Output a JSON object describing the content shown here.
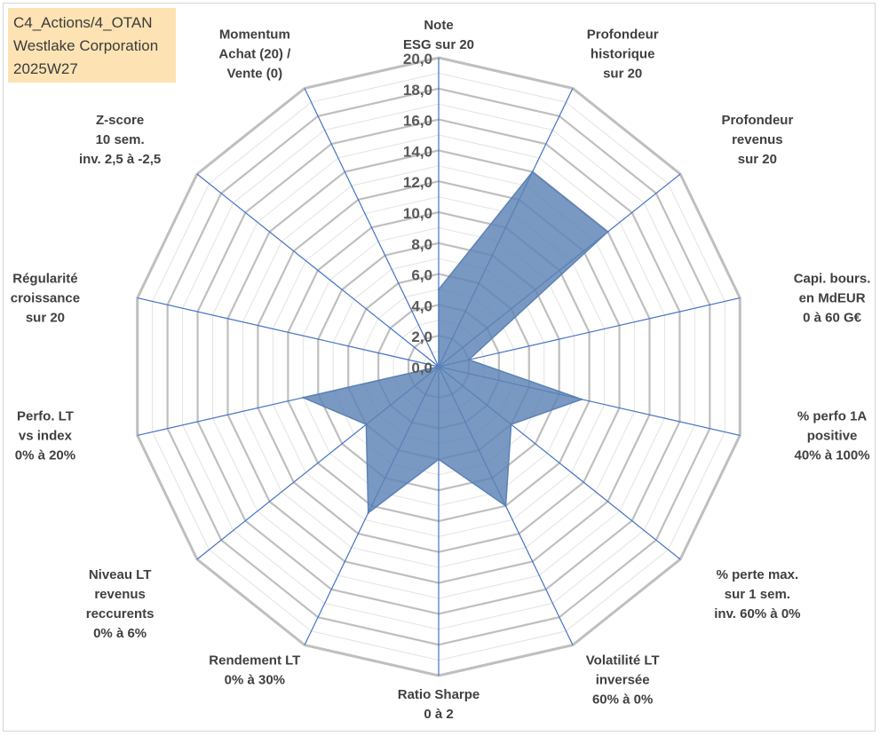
{
  "info": {
    "line1": "C4_Actions/4_OTAN",
    "line2": "Westlake Corporation",
    "line3": "2025W27"
  },
  "chart_data": {
    "type": "radar",
    "title": "",
    "max": 20,
    "ticks": [
      "0,0",
      "2,0",
      "4,0",
      "6,0",
      "8,0",
      "10,0",
      "12,0",
      "14,0",
      "16,0",
      "18,0",
      "20,0"
    ],
    "axes": [
      {
        "label": [
          "Note",
          "ESG sur 20"
        ],
        "value": 5.0
      },
      {
        "label": [
          "Profondeur",
          "historique",
          "sur 20"
        ],
        "value": 14.0
      },
      {
        "label": [
          "Profondeur",
          "revenus",
          "sur 20"
        ],
        "value": 14.0
      },
      {
        "label": [
          "Capi. bours.",
          "en MdEUR",
          "0 à 60 G€"
        ],
        "value": 2.0
      },
      {
        "label": [
          "% perfo 1A",
          "positive",
          "40% à 100%"
        ],
        "value": 9.5
      },
      {
        "label": [
          "% perte max.",
          "sur 1 sem.",
          "inv. 60% à 0%"
        ],
        "value": 6.0
      },
      {
        "label": [
          "Volatilité LT",
          "inversée",
          "60% à 0%"
        ],
        "value": 10.0
      },
      {
        "label": [
          "Ratio Sharpe",
          "0 à 2"
        ],
        "value": 6.0
      },
      {
        "label": [
          "Rendement LT",
          "0% à 30%"
        ],
        "value": 10.5
      },
      {
        "label": [
          "Niveau LT",
          "revenus",
          "reccurents",
          "0% à 6%"
        ],
        "value": 6.0
      },
      {
        "label": [
          "Perfo. LT",
          "vs index",
          "0% à 20%"
        ],
        "value": 9.0
      },
      {
        "label": [
          "Régularité",
          "croissance",
          "sur 20"
        ],
        "value": 0.0
      },
      {
        "label": [
          "Z-score",
          "10 sem.",
          "inv. 2,5 à -2,5"
        ],
        "value": 0.0
      },
      {
        "label": [
          "Momentum",
          "Achat (20) /",
          "Vente (0)"
        ],
        "value": 0.0
      }
    ],
    "colors": {
      "fill": "#5b82b5",
      "fill_opacity": 0.82,
      "grid_major": "#bfbfbf",
      "grid_minor": "#e3e3e3",
      "spoke": "#4472c4"
    }
  }
}
